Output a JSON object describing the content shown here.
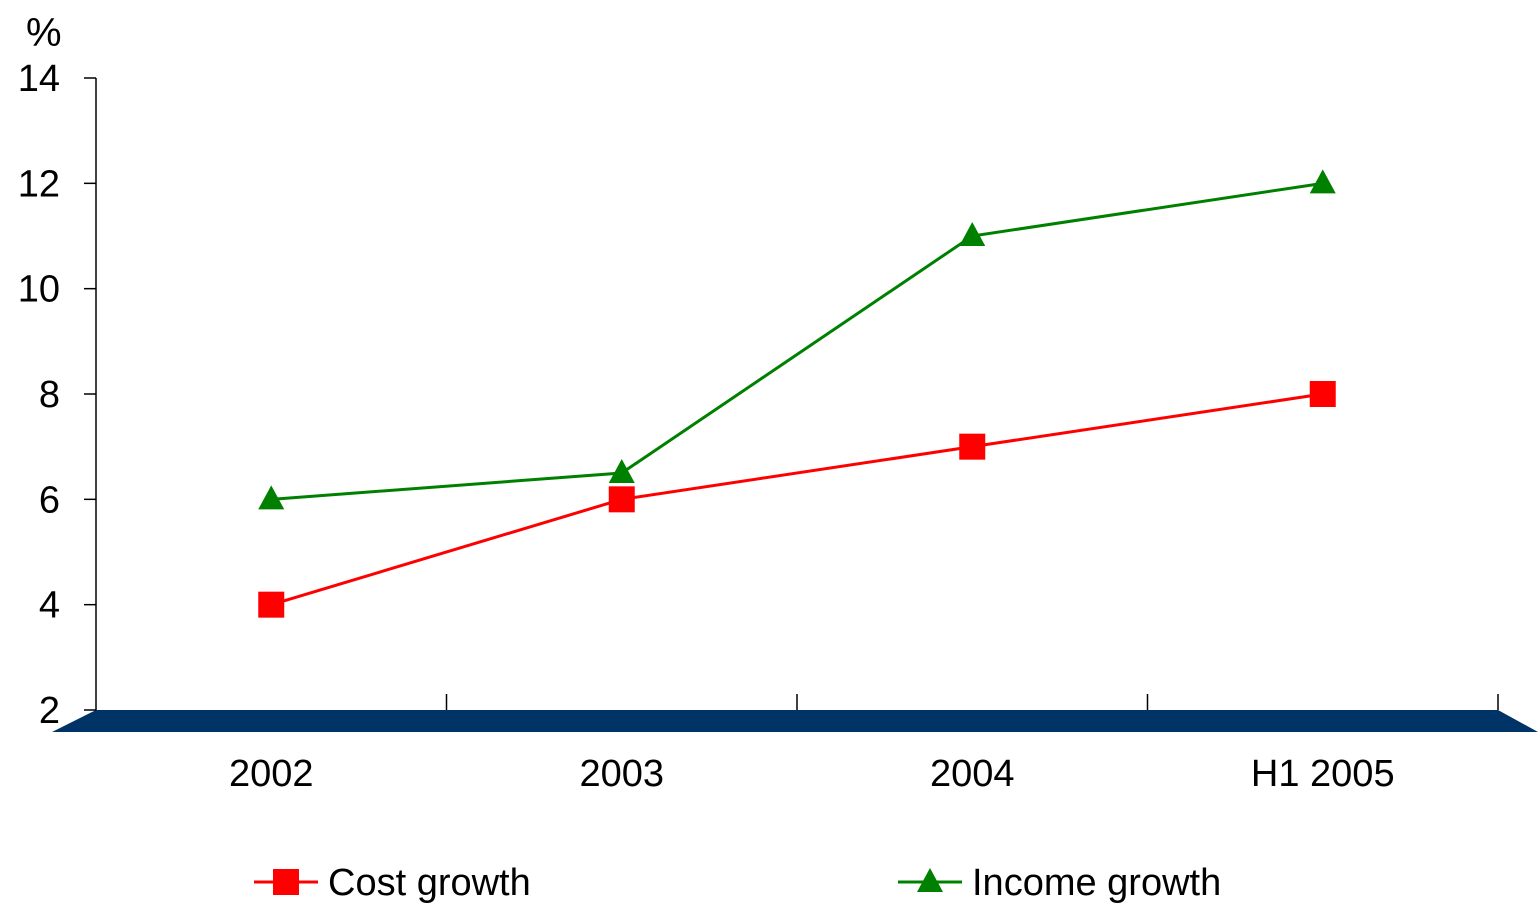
{
  "chart_data": {
    "type": "line",
    "categories": [
      "2002",
      "2003",
      "2004",
      "H1 2005"
    ],
    "y_unit": "%",
    "ylim": [
      2,
      14
    ],
    "yticks": [
      2,
      4,
      6,
      8,
      10,
      12,
      14
    ],
    "series": [
      {
        "name": "Cost growth",
        "color": "#ff0000",
        "marker": "square",
        "values": [
          4,
          6,
          7,
          8
        ]
      },
      {
        "name": "Income growth",
        "color": "#008000",
        "marker": "triangle",
        "values": [
          6,
          6.5,
          11,
          12
        ]
      }
    ],
    "floor_color": "#003366",
    "legend_position": "bottom",
    "grid": false
  }
}
